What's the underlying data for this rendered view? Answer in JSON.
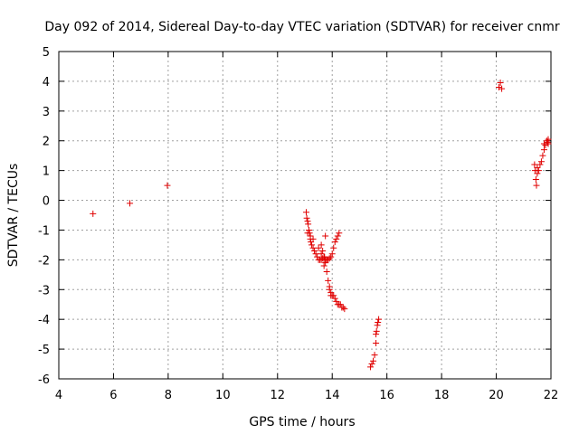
{
  "chart_data": {
    "type": "scatter",
    "title": "Day 092 of 2014, Sidereal Day-to-day VTEC variation (SDTVAR) for receiver cnmr",
    "xlabel": "GPS time / hours",
    "ylabel": "SDTVAR / TECUs",
    "xlim": [
      4,
      22
    ],
    "ylim": [
      -6,
      5
    ],
    "xticks": [
      4,
      6,
      8,
      10,
      12,
      14,
      16,
      18,
      20,
      22
    ],
    "yticks": [
      -6,
      -5,
      -4,
      -3,
      -2,
      -1,
      0,
      1,
      2,
      3,
      4,
      5
    ],
    "grid": true,
    "series": [
      {
        "name": "SDTVAR",
        "color": "#e00000",
        "marker": "plus",
        "x": [
          5.25,
          6.6,
          7.97,
          13.05,
          13.07,
          13.1,
          13.12,
          13.15,
          13.17,
          13.2,
          13.22,
          13.25,
          13.3,
          13.35,
          13.4,
          13.45,
          13.5,
          13.55,
          13.6,
          13.65,
          13.7,
          13.75,
          13.8,
          13.85,
          13.9,
          13.95,
          14.0,
          14.05,
          14.1,
          14.15,
          14.2,
          14.25,
          13.6,
          13.65,
          13.7,
          13.75,
          13.8,
          13.85,
          13.9,
          13.95,
          14.0,
          14.05,
          14.1,
          14.15,
          14.2,
          14.25,
          14.3,
          14.35,
          14.4,
          14.45,
          13.1,
          13.2,
          13.3,
          13.5,
          13.6,
          13.7,
          13.8,
          13.75,
          13.72,
          13.9,
          13.95,
          15.4,
          15.45,
          15.5,
          15.55,
          15.6,
          15.6,
          15.62,
          15.65,
          15.67,
          15.7,
          20.1,
          20.15,
          20.2,
          21.4,
          21.42,
          21.45,
          21.47,
          21.5,
          21.5,
          21.55,
          21.6,
          21.65,
          21.7,
          21.75,
          21.75,
          21.8,
          21.85,
          21.87,
          21.9,
          21.9
        ],
        "y": [
          -0.45,
          -0.1,
          0.5,
          -0.4,
          -0.6,
          -0.7,
          -0.8,
          -1.0,
          -1.1,
          -1.3,
          -1.4,
          -1.5,
          -1.6,
          -1.7,
          -1.8,
          -1.9,
          -2.0,
          -2.0,
          -2.0,
          -1.95,
          -2.0,
          -2.0,
          -2.0,
          -2.0,
          -1.95,
          -1.9,
          -1.8,
          -1.6,
          -1.4,
          -1.3,
          -1.2,
          -1.1,
          -1.5,
          -1.7,
          -1.9,
          -2.1,
          -2.4,
          -2.7,
          -2.9,
          -3.1,
          -3.2,
          -3.2,
          -3.3,
          -3.4,
          -3.5,
          -3.5,
          -3.5,
          -3.6,
          -3.6,
          -3.65,
          -1.1,
          -1.2,
          -1.3,
          -1.6,
          -1.8,
          -2.2,
          -2.0,
          -1.2,
          -1.9,
          -3.0,
          -3.2,
          -5.6,
          -5.5,
          -5.4,
          -5.2,
          -4.8,
          -4.5,
          -4.4,
          -4.2,
          -4.1,
          -4.0,
          3.8,
          3.95,
          3.75,
          1.2,
          1.0,
          0.7,
          0.5,
          0.9,
          1.1,
          1.0,
          1.2,
          1.3,
          1.5,
          1.7,
          1.9,
          1.85,
          2.0,
          1.95,
          2.05,
          1.9
        ]
      }
    ]
  }
}
